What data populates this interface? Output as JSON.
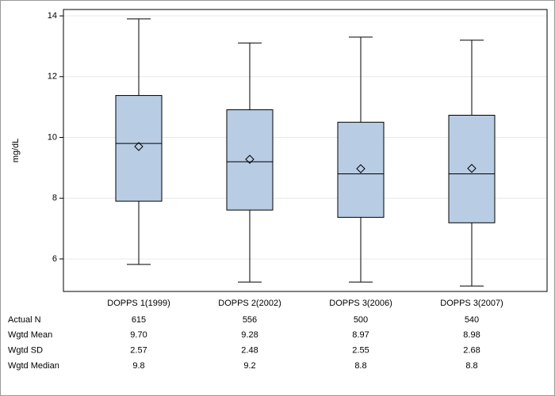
{
  "chart_data": {
    "type": "box",
    "y_label": "mg/dL",
    "categories": [
      "DOPPS 1(1999)",
      "DOPPS 2(2002)",
      "DOPPS 3(2006)",
      "DOPPS 3(2007)"
    ],
    "color": "#b8cce4",
    "boxes": [
      {
        "min": 5.82,
        "q1": 7.9,
        "median": 9.8,
        "q3": 11.38,
        "max": 13.9,
        "mean": 9.7
      },
      {
        "min": 5.24,
        "q1": 7.61,
        "median": 9.2,
        "q3": 10.91,
        "max": 13.11,
        "mean": 9.28
      },
      {
        "min": 5.24,
        "q1": 7.37,
        "median": 8.8,
        "q3": 10.5,
        "max": 13.3,
        "mean": 8.97
      },
      {
        "min": 5.11,
        "q1": 7.19,
        "median": 8.8,
        "q3": 10.73,
        "max": 13.2,
        "mean": 8.98
      }
    ],
    "ylim": [
      4.93,
      14.21
    ],
    "yticks": [
      6,
      8,
      10,
      12,
      14
    ],
    "grid": true,
    "table": [
      {
        "label": "Actual N",
        "cells": [
          "615",
          "556",
          "500",
          "540"
        ]
      },
      {
        "label": "Wgtd Mean",
        "cells": [
          "9.70",
          "9.28",
          "8.97",
          "8.98"
        ]
      },
      {
        "label": "Wgtd SD",
        "cells": [
          "2.57",
          "2.48",
          "2.55",
          "2.68"
        ]
      },
      {
        "label": "Wgtd Median",
        "cells": [
          "9.8",
          "9.2",
          "8.8",
          "8.8"
        ]
      }
    ]
  }
}
